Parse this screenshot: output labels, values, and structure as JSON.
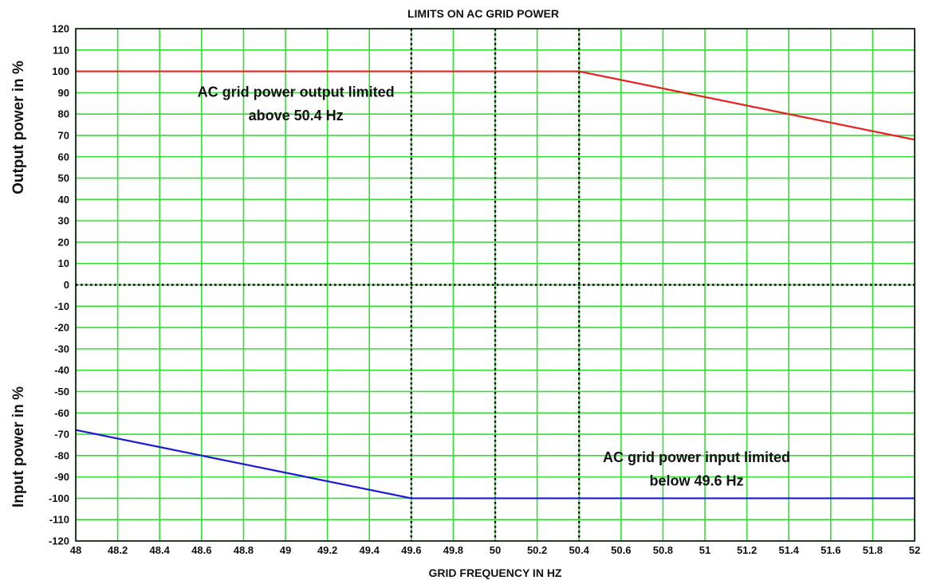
{
  "chart_data": {
    "type": "line",
    "title": "LIMITS ON AC GRID POWER",
    "xlabel": "GRID FREQUENCY IN HZ",
    "ylabel_top": "Output power in %",
    "ylabel_bottom": "Input power in %",
    "xlim": [
      48,
      52
    ],
    "ylim": [
      -120,
      120
    ],
    "x_ticks": [
      "48",
      "48.2",
      "48.4",
      "48.6",
      "48.8",
      "49",
      "49.2",
      "49.4",
      "49.6",
      "49.8",
      "50",
      "50.2",
      "50.4",
      "50.6",
      "50.8",
      "51",
      "51.2",
      "51.4",
      "51.6",
      "51.8",
      "52"
    ],
    "y_ticks": [
      "120",
      "110",
      "100",
      "90",
      "80",
      "70",
      "60",
      "50",
      "40",
      "30",
      "20",
      "10",
      "0",
      "-10",
      "-20",
      "-30",
      "-40",
      "-50",
      "-60",
      "-70",
      "-80",
      "-90",
      "-100",
      "-110",
      "-120"
    ],
    "grid": true,
    "grid_color": "#33dd33",
    "reference_lines": {
      "x": [
        49.6,
        50,
        50.4
      ],
      "y": [
        0
      ],
      "style": "dotted",
      "color": "#000000"
    },
    "series": [
      {
        "color": "#e8201e",
        "x": [
          48,
          50.4,
          52
        ],
        "y": [
          100,
          100,
          68
        ]
      },
      {
        "color": "#1a1ad6",
        "x": [
          48,
          49.6,
          52
        ],
        "y": [
          -68,
          -100,
          -100
        ]
      }
    ],
    "annotations": [
      {
        "lines": [
          "AC grid power output limited",
          "above 50.4 Hz"
        ],
        "x": 49.05,
        "y": [
          88,
          77
        ]
      },
      {
        "lines": [
          "AC grid power input limited",
          "below 49.6 Hz"
        ],
        "x": 50.96,
        "y": [
          -83,
          -94
        ]
      }
    ]
  }
}
